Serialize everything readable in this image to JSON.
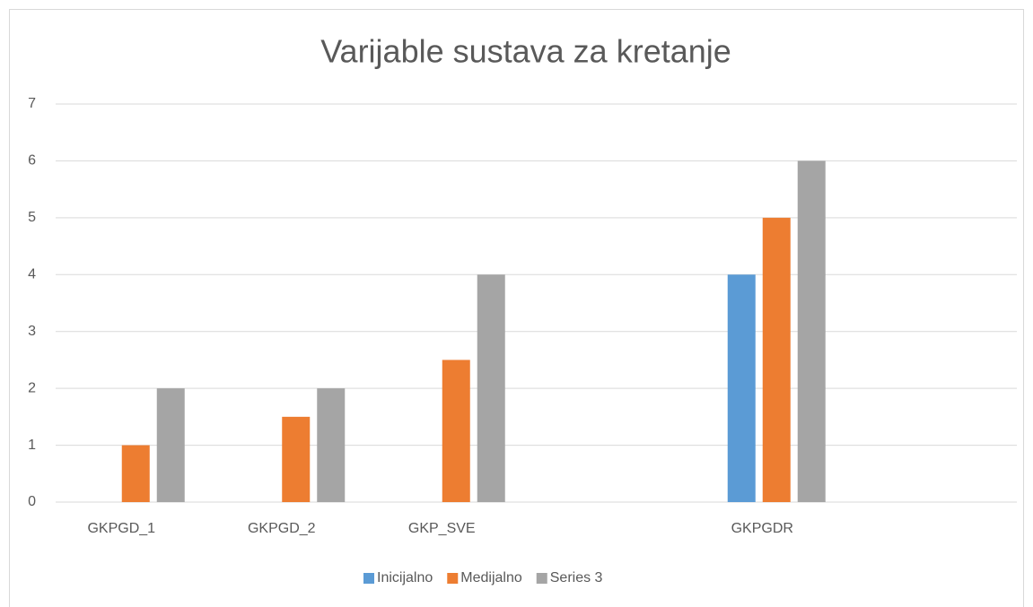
{
  "chart_data": {
    "type": "bar",
    "title": "Varijable sustava za kretanje",
    "categories": [
      "GKPGD_1",
      "GKPGD_2",
      "GKP_SVE",
      null,
      "GKPGDR",
      null
    ],
    "series": [
      {
        "name": "Inicijalno",
        "color": "#5b9bd5",
        "values": [
          null,
          null,
          null,
          null,
          4,
          null
        ]
      },
      {
        "name": "Medijalno",
        "color": "#ed7d31",
        "values": [
          1,
          1.5,
          2.5,
          null,
          5,
          null
        ]
      },
      {
        "name": "Series 3",
        "color": "#a5a5a5",
        "values": [
          2,
          2,
          4,
          null,
          6,
          null
        ]
      }
    ],
    "ylim": [
      0,
      7
    ],
    "yticks": [
      0,
      1,
      2,
      3,
      4,
      5,
      6,
      7
    ],
    "grid": true,
    "legend": "bottom"
  }
}
